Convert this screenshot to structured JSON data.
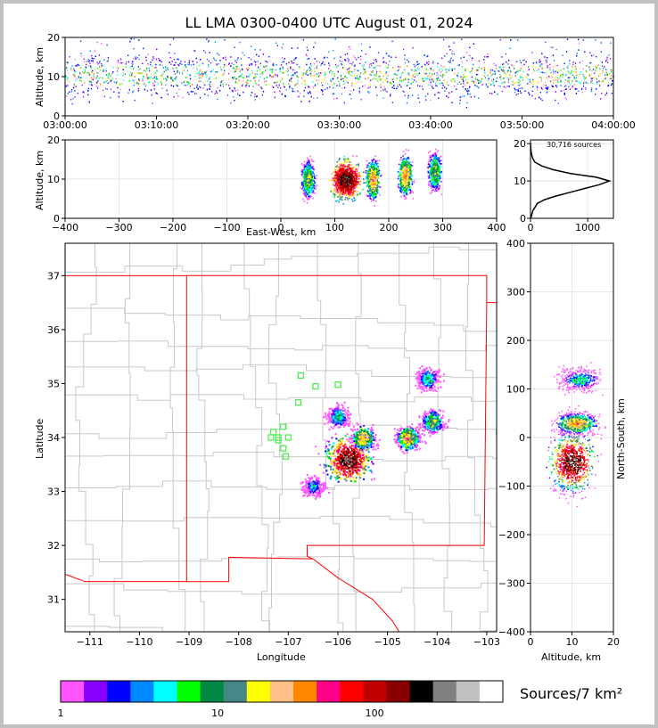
{
  "chart_data": [
    {
      "panel": "time-altitude",
      "type": "scatter",
      "title": "LL LMA 0300-0400 UTC August 01, 2024",
      "xlabel": "",
      "ylabel": "Altitude, km",
      "x_ticks": [
        "03:00:00",
        "03:10:00",
        "03:20:00",
        "03:30:00",
        "03:40:00",
        "03:50:00",
        "04:00:00"
      ],
      "y_ticks": [
        0,
        10,
        20
      ],
      "ylim": [
        0,
        20
      ],
      "description_core_altitude_km": [
        7,
        14
      ]
    },
    {
      "panel": "east-west-altitude",
      "type": "heatmap",
      "xlabel": "East-West, km",
      "ylabel": "Altitude, km",
      "xlim": [
        -400,
        400
      ],
      "ylim": [
        0,
        20
      ],
      "x_ticks": [
        -400,
        -300,
        -200,
        -100,
        0,
        100,
        200,
        300,
        400
      ],
      "y_ticks": [
        0,
        10,
        20
      ],
      "clusters": [
        {
          "x": 50,
          "y": 10,
          "level": 10
        },
        {
          "x": 120,
          "y": 10,
          "level": 100
        },
        {
          "x": 170,
          "y": 10,
          "level": 20
        },
        {
          "x": 230,
          "y": 11,
          "level": 20
        },
        {
          "x": 285,
          "y": 12,
          "level": 10
        }
      ]
    },
    {
      "panel": "altitude-histogram",
      "type": "line",
      "annotation": "30,716 sources",
      "xlim": [
        0,
        1450
      ],
      "ylim": [
        0,
        21
      ],
      "x_ticks": [
        0,
        1000
      ],
      "y_ticks": [
        0,
        10,
        20
      ],
      "points": [
        [
          5,
          0
        ],
        [
          40,
          2
        ],
        [
          120,
          4
        ],
        [
          250,
          5
        ],
        [
          450,
          6
        ],
        [
          700,
          7
        ],
        [
          950,
          8
        ],
        [
          1200,
          9
        ],
        [
          1380,
          10
        ],
        [
          1150,
          11
        ],
        [
          700,
          12
        ],
        [
          400,
          13
        ],
        [
          200,
          14
        ],
        [
          80,
          15
        ],
        [
          40,
          16
        ],
        [
          20,
          17
        ],
        [
          10,
          18
        ],
        [
          5,
          19
        ],
        [
          2,
          20
        ]
      ]
    },
    {
      "panel": "plan-view",
      "type": "heatmap",
      "xlabel": "Longitude",
      "ylabel": "Latitude",
      "xlim": [
        -111.5,
        -102.8
      ],
      "ylim": [
        30.4,
        37.6
      ],
      "x_ticks": [
        -111,
        -110,
        -109,
        -108,
        -107,
        -106,
        -105,
        -104,
        -103
      ],
      "y_ticks": [
        31,
        32,
        33,
        34,
        35,
        36,
        37
      ],
      "clusters": [
        {
          "lon": -105.8,
          "lat": 33.6,
          "level": 100
        },
        {
          "lon": -105.5,
          "lat": 34.0,
          "level": 20
        },
        {
          "lon": -104.6,
          "lat": 34.0,
          "level": 20
        },
        {
          "lon": -104.1,
          "lat": 34.3,
          "level": 10
        },
        {
          "lon": -104.2,
          "lat": 35.1,
          "level": 5
        },
        {
          "lon": -106.0,
          "lat": 34.4,
          "level": 5
        },
        {
          "lon": -106.5,
          "lat": 33.1,
          "level": 3
        }
      ],
      "stations": [
        {
          "lon": -107.2,
          "lat": 34.0
        },
        {
          "lon": -107.3,
          "lat": 34.1
        },
        {
          "lon": -107.1,
          "lat": 34.2
        },
        {
          "lon": -107.0,
          "lat": 34.0
        },
        {
          "lon": -107.1,
          "lat": 33.8
        },
        {
          "lon": -106.8,
          "lat": 34.65
        },
        {
          "lon": -106.75,
          "lat": 35.15
        },
        {
          "lon": -106.45,
          "lat": 34.95
        },
        {
          "lon": -106.0,
          "lat": 34.98
        },
        {
          "lon": -107.05,
          "lat": 33.65
        },
        {
          "lon": -107.35,
          "lat": 34.0
        },
        {
          "lon": -107.2,
          "lat": 33.95
        }
      ]
    },
    {
      "panel": "altitude-north-south",
      "type": "heatmap",
      "xlabel": "Altitude, km",
      "ylabel": "North-South, km",
      "xlim": [
        0,
        20
      ],
      "ylim": [
        -400,
        400
      ],
      "x_ticks": [
        0,
        10,
        20
      ],
      "y_ticks": [
        -400,
        -300,
        -200,
        -100,
        0,
        100,
        200,
        300,
        400
      ],
      "clusters": [
        {
          "alt": 10,
          "ns": -50,
          "level": 100
        },
        {
          "alt": 11,
          "ns": 30,
          "level": 20
        },
        {
          "alt": 12,
          "ns": 120,
          "level": 5
        }
      ]
    }
  ],
  "colorbar": {
    "label": "Sources/7 km²",
    "tick_labels": [
      "1",
      "10",
      "100"
    ],
    "colors": [
      "#ff55ff",
      "#8800ff",
      "#0000ff",
      "#0088ff",
      "#00ffff",
      "#00ff00",
      "#008844",
      "#448888",
      "#ffff00",
      "#ffc088",
      "#ff8800",
      "#ff0088",
      "#ff0000",
      "#c00000",
      "#880000",
      "#000000",
      "#808080",
      "#c0c0c0",
      "#ffffff"
    ]
  },
  "boundary_color": "#ff0000",
  "county_line_color": "#c8c8c8"
}
